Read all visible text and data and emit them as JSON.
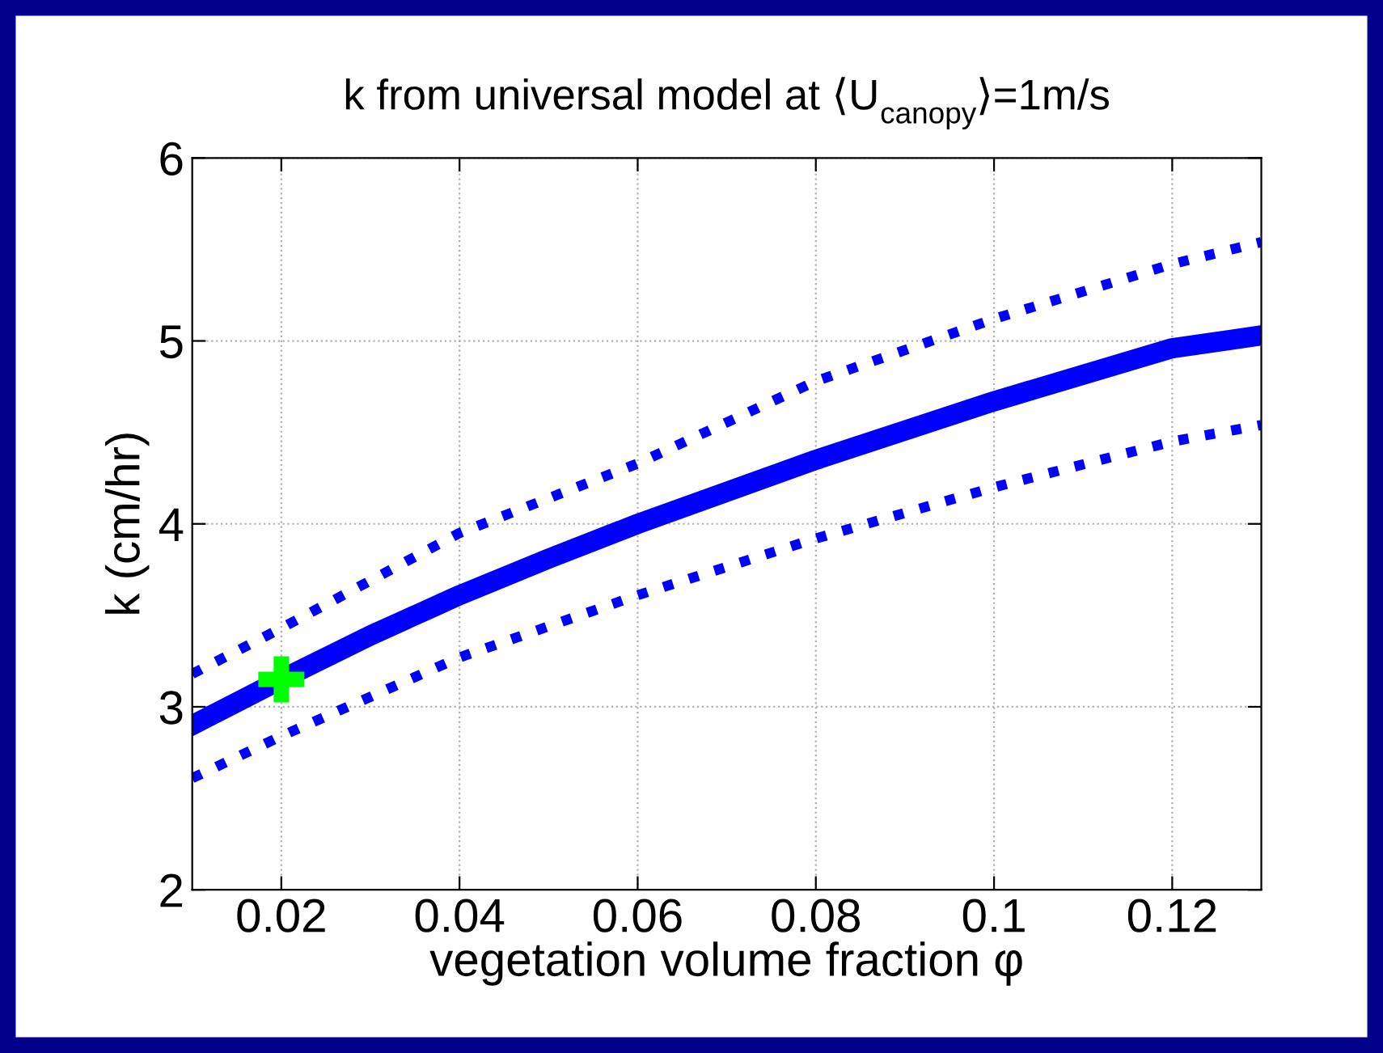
{
  "chart_data": {
    "type": "line",
    "title": "k from universal model at ⟨U$_{canopy}$⟩=1m/s",
    "xlabel": "vegetation volume fraction φ",
    "ylabel": "k (cm/hr)",
    "xlim": [
      0.01,
      0.13
    ],
    "ylim": [
      2,
      6
    ],
    "xticks": [
      0.02,
      0.04,
      0.06,
      0.08,
      0.1,
      0.12
    ],
    "yticks": [
      2,
      3,
      4,
      5,
      6
    ],
    "grid": true,
    "series": [
      {
        "color": "#0000ff",
        "line_style": "solid",
        "x": [
          0.01,
          0.02,
          0.03,
          0.04,
          0.05,
          0.06,
          0.08,
          0.1,
          0.12,
          0.13
        ],
        "values": [
          2.9,
          3.15,
          3.39,
          3.61,
          3.81,
          4.0,
          4.35,
          4.67,
          4.96,
          5.03
        ]
      },
      {
        "color": "#0000ff",
        "line_style": "dotted",
        "x": [
          0.01,
          0.02,
          0.04,
          0.06,
          0.08,
          0.1,
          0.12,
          0.13
        ],
        "values": [
          3.18,
          3.43,
          3.95,
          4.33,
          4.78,
          5.12,
          5.42,
          5.54
        ]
      },
      {
        "color": "#0000ff",
        "line_style": "dotted",
        "x": [
          0.01,
          0.02,
          0.04,
          0.06,
          0.08,
          0.1,
          0.12,
          0.13
        ],
        "values": [
          2.61,
          2.84,
          3.27,
          3.61,
          3.92,
          4.2,
          4.45,
          4.54
        ]
      },
      {
        "type": "scatter",
        "color": "#00ff00",
        "marker": "cross",
        "x": [
          0.02
        ],
        "values": [
          3.15
        ]
      }
    ]
  }
}
